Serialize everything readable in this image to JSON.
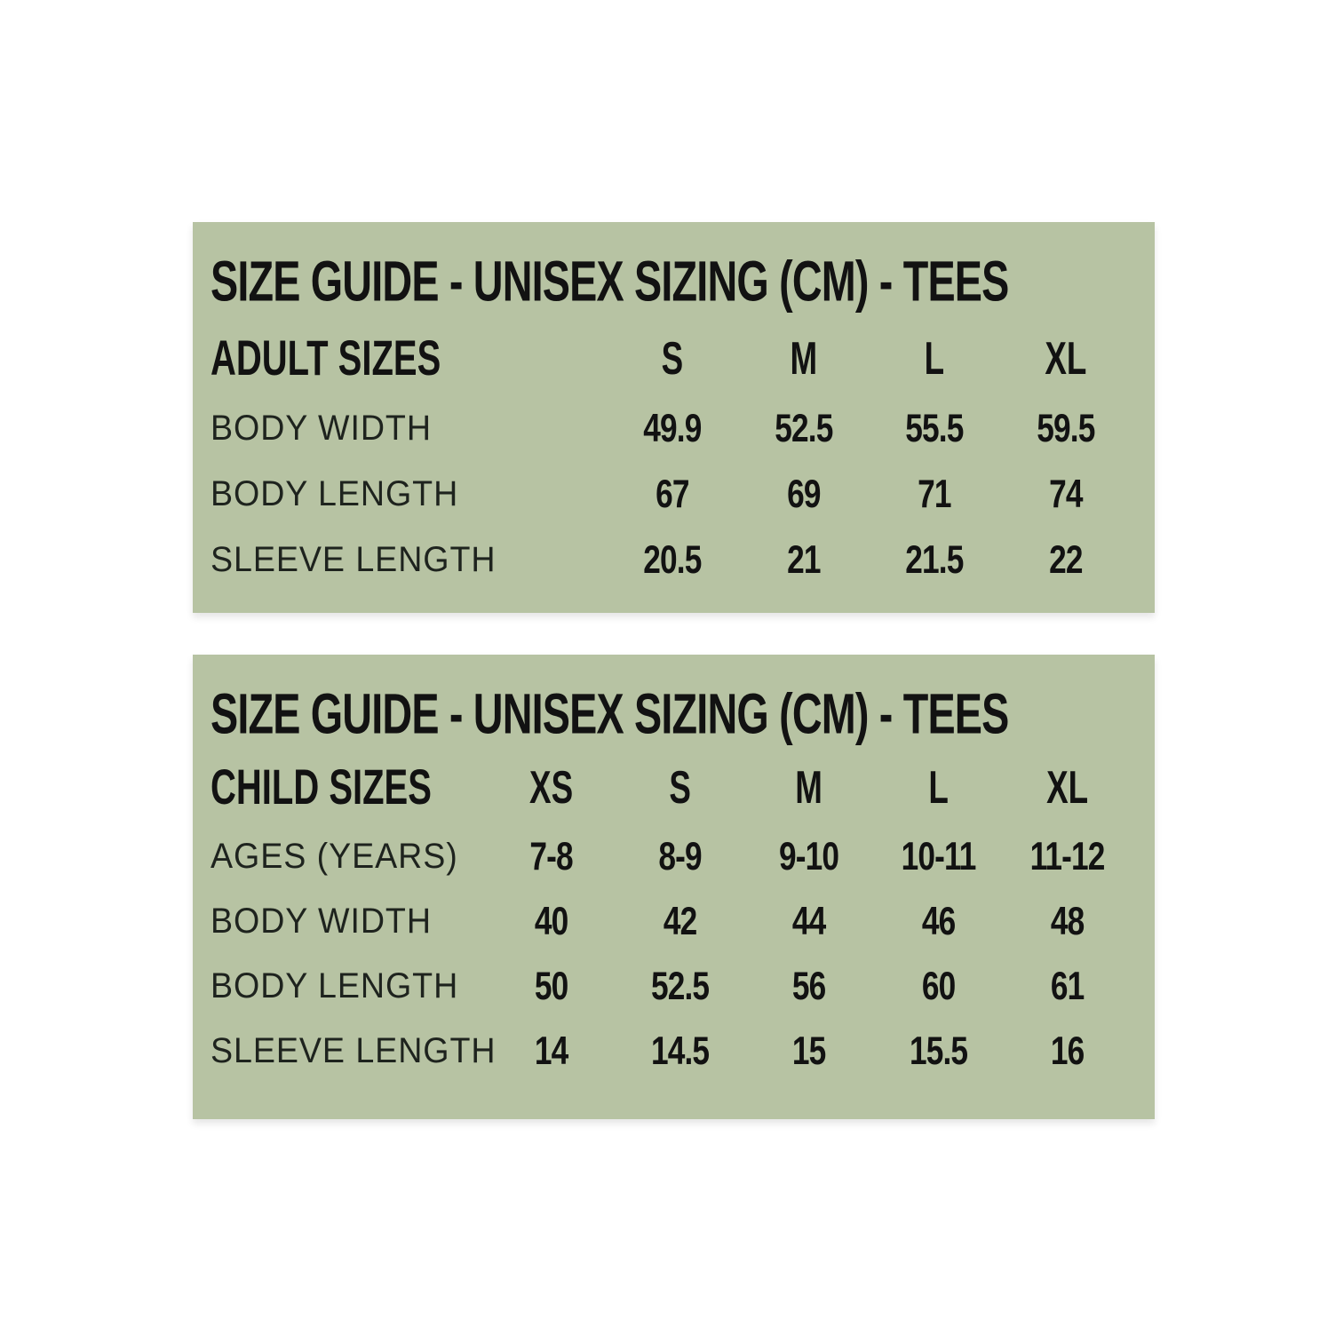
{
  "page": {
    "background_color": "#ffffff",
    "panel_color": "#b7c3a3",
    "text_color": "#121212"
  },
  "panels": [
    {
      "title": "SIZE GUIDE - UNISEX SIZING (CM) - TEES",
      "group_label": "ADULT SIZES",
      "columns": [
        "S",
        "M",
        "L",
        "XL"
      ],
      "rows": [
        {
          "label": "BODY WIDTH",
          "values": [
            "49.9",
            "52.5",
            "55.5",
            "59.5"
          ]
        },
        {
          "label": "BODY LENGTH",
          "values": [
            "67",
            "69",
            "71",
            "74"
          ]
        },
        {
          "label": "SLEEVE LENGTH",
          "values": [
            "20.5",
            "21",
            "21.5",
            "22"
          ]
        }
      ]
    },
    {
      "title": "SIZE GUIDE - UNISEX SIZING (CM) - TEES",
      "group_label": "CHILD SIZES",
      "columns": [
        "XS",
        "S",
        "M",
        "L",
        "XL"
      ],
      "rows": [
        {
          "label": "AGES (YEARS)",
          "values": [
            "7-8",
            "8-9",
            "9-10",
            "10-11",
            "11-12"
          ]
        },
        {
          "label": "BODY WIDTH",
          "values": [
            "40",
            "42",
            "44",
            "46",
            "48"
          ]
        },
        {
          "label": "BODY LENGTH",
          "values": [
            "50",
            "52.5",
            "56",
            "60",
            "61"
          ]
        },
        {
          "label": "SLEEVE LENGTH",
          "values": [
            "14",
            "14.5",
            "15",
            "15.5",
            "16"
          ]
        }
      ]
    }
  ],
  "chart_data": [
    {
      "type": "table",
      "title": "SIZE GUIDE - UNISEX SIZING (CM) - TEES",
      "group": "ADULT SIZES",
      "columns": [
        "S",
        "M",
        "L",
        "XL"
      ],
      "rows": [
        {
          "label": "BODY WIDTH",
          "values": [
            49.9,
            52.5,
            55.5,
            59.5
          ]
        },
        {
          "label": "BODY LENGTH",
          "values": [
            67,
            69,
            71,
            74
          ]
        },
        {
          "label": "SLEEVE LENGTH",
          "values": [
            20.5,
            21,
            21.5,
            22
          ]
        }
      ],
      "units": "cm"
    },
    {
      "type": "table",
      "title": "SIZE GUIDE - UNISEX SIZING (CM) - TEES",
      "group": "CHILD SIZES",
      "columns": [
        "XS",
        "S",
        "M",
        "L",
        "XL"
      ],
      "rows": [
        {
          "label": "AGES (YEARS)",
          "values": [
            "7-8",
            "8-9",
            "9-10",
            "10-11",
            "11-12"
          ]
        },
        {
          "label": "BODY WIDTH",
          "values": [
            40,
            42,
            44,
            46,
            48
          ]
        },
        {
          "label": "BODY LENGTH",
          "values": [
            50,
            52.5,
            56,
            60,
            61
          ]
        },
        {
          "label": "SLEEVE LENGTH",
          "values": [
            14,
            14.5,
            15,
            15.5,
            16
          ]
        }
      ],
      "units": "cm"
    }
  ]
}
